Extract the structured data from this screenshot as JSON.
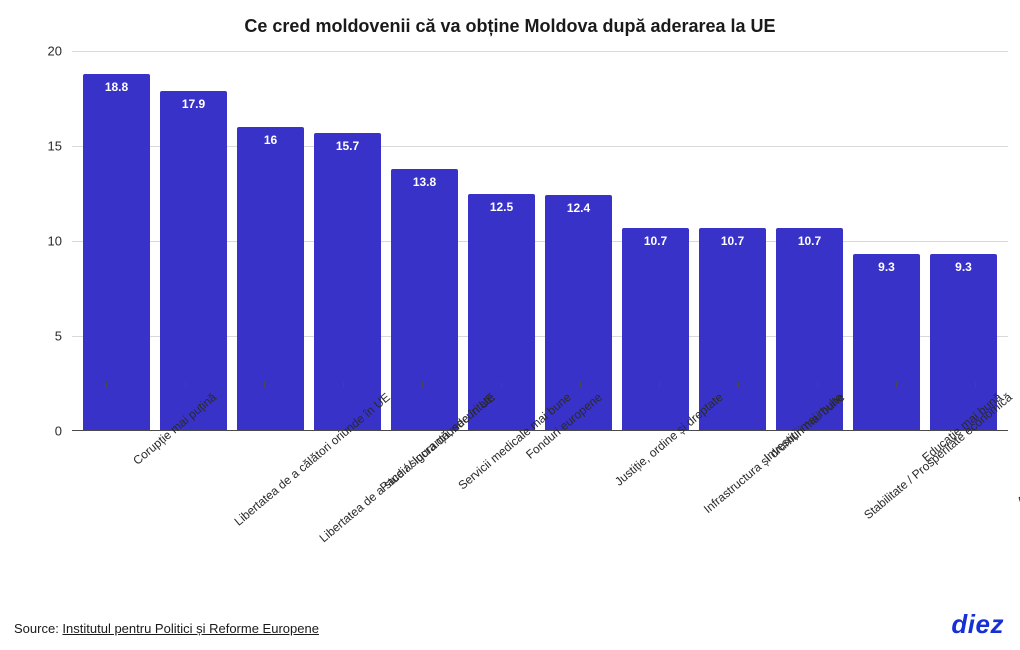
{
  "title": "Ce cred moldovenii că va obține Moldova după aderarea la UE",
  "source_prefix": "Source: ",
  "source_text": "Institutul pentru Politici și Reforme Europene",
  "logo_text": "diez",
  "logo_color": "#1730d6",
  "chart": {
    "type": "bar",
    "bar_color": "#3832c9",
    "value_label_color": "#ffffff",
    "background_color": "#ffffff",
    "grid_color": "#d9d9d9",
    "axis_color": "#4a4a4a",
    "ylim": [
      0,
      20
    ],
    "yticks": [
      0,
      5,
      10,
      15,
      20
    ],
    "bar_width_ratio": 0.86,
    "label_rotate_deg": -40,
    "title_fontsize": 18,
    "tick_fontsize": 13,
    "xlabel_fontsize": 12,
    "value_fontsize": 12,
    "categories": [
      "Corupție mai puțină",
      "Libertatea de a călători oriunde în UE",
      "Libertatea de a studia/ lucra oriunde în UE",
      "Pace / siguranță, securitate",
      "Servicii medicale mai bune",
      "Fonduri europene",
      "Justiție, ordine și dreptate",
      "Infrastructura și drumuri mai bune",
      "Investiții mai multe",
      "Stabilitate / Prosperitate economică",
      "Educație mai bună",
      "Acces la piața unică europeană"
    ],
    "values": [
      18.8,
      17.9,
      16,
      15.7,
      13.8,
      12.5,
      12.4,
      10.7,
      10.7,
      10.7,
      9.3,
      9.3
    ]
  }
}
